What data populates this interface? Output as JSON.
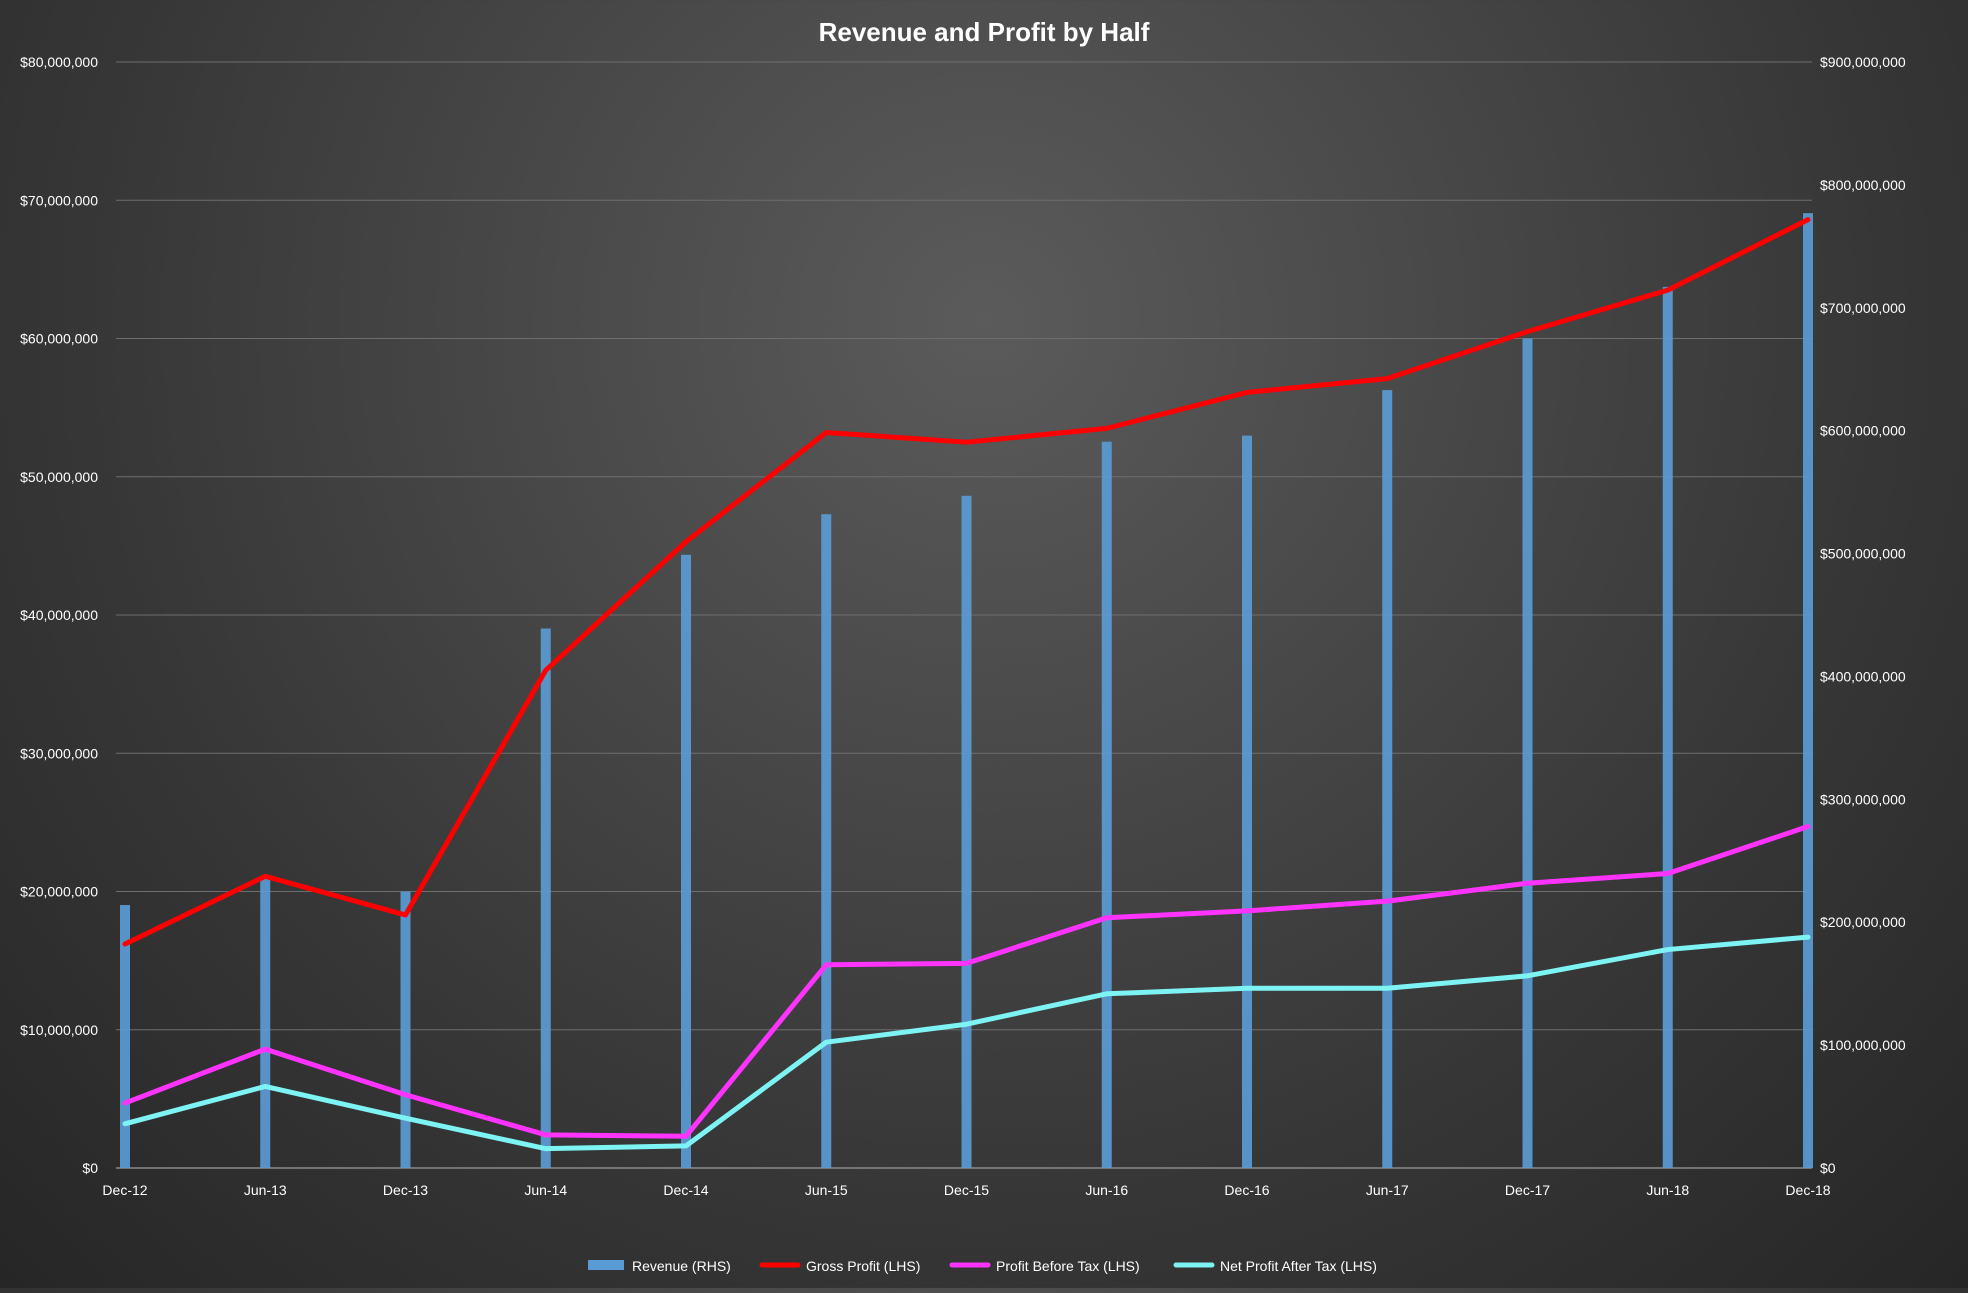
{
  "chart_data": {
    "type": "bar+line",
    "title": "Revenue and Profit by Half",
    "categories": [
      "Dec-12",
      "Jun-13",
      "Dec-13",
      "Jun-14",
      "Dec-14",
      "Jun-15",
      "Dec-15",
      "Jun-16",
      "Dec-16",
      "Jun-17",
      "Dec-17",
      "Jun-18",
      "Dec-18"
    ],
    "y_left": {
      "ylim": [
        0,
        80000000
      ],
      "ticks": [
        0,
        10000000,
        20000000,
        30000000,
        40000000,
        50000000,
        60000000,
        70000000,
        80000000
      ],
      "tick_labels": [
        "$0",
        "$10,000,000",
        "$20,000,000",
        "$30,000,000",
        "$40,000,000",
        "$50,000,000",
        "$60,000,000",
        "$70,000,000",
        "$80,000,000"
      ]
    },
    "y_right": {
      "ylim": [
        0,
        900000000
      ],
      "ticks": [
        0,
        100000000,
        200000000,
        300000000,
        400000000,
        500000000,
        600000000,
        700000000,
        800000000,
        900000000
      ],
      "tick_labels": [
        "$0",
        "$100,000,000",
        "$200,000,000",
        "$300,000,000",
        "$400,000,000",
        "$500,000,000",
        "$600,000,000",
        "$700,000,000",
        "$800,000,000",
        "$900,000,000"
      ]
    },
    "grid": true,
    "legend_position": "bottom",
    "series": [
      {
        "name": "Revenue (RHS)",
        "kind": "bar",
        "axis": "right",
        "color": "#5b9bd5",
        "values": [
          214000000,
          237000000,
          225000000,
          439000000,
          499000000,
          532000000,
          547000000,
          591000000,
          596000000,
          633000000,
          675000000,
          717000000,
          777000000
        ]
      },
      {
        "name": "Gross Profit (LHS)",
        "kind": "line",
        "axis": "left",
        "color": "#ff0000",
        "values": [
          16200000,
          21100000,
          18300000,
          36000000,
          45300000,
          53200000,
          52500000,
          53500000,
          56100000,
          57100000,
          60500000,
          63500000,
          68600000
        ]
      },
      {
        "name": "Profit Before Tax (LHS)",
        "kind": "line",
        "axis": "left",
        "color": "#ff33ff",
        "values": [
          4700000,
          8600000,
          5300000,
          2400000,
          2300000,
          14700000,
          14800000,
          18100000,
          18600000,
          19300000,
          20600000,
          21300000,
          24700000
        ]
      },
      {
        "name": "Net Profit After Tax (LHS)",
        "kind": "line",
        "axis": "left",
        "color": "#7ef3f3",
        "values": [
          3200000,
          5900000,
          3600000,
          1400000,
          1600000,
          9100000,
          10400000,
          12600000,
          13000000,
          13000000,
          13900000,
          15800000,
          16700000
        ]
      }
    ]
  }
}
